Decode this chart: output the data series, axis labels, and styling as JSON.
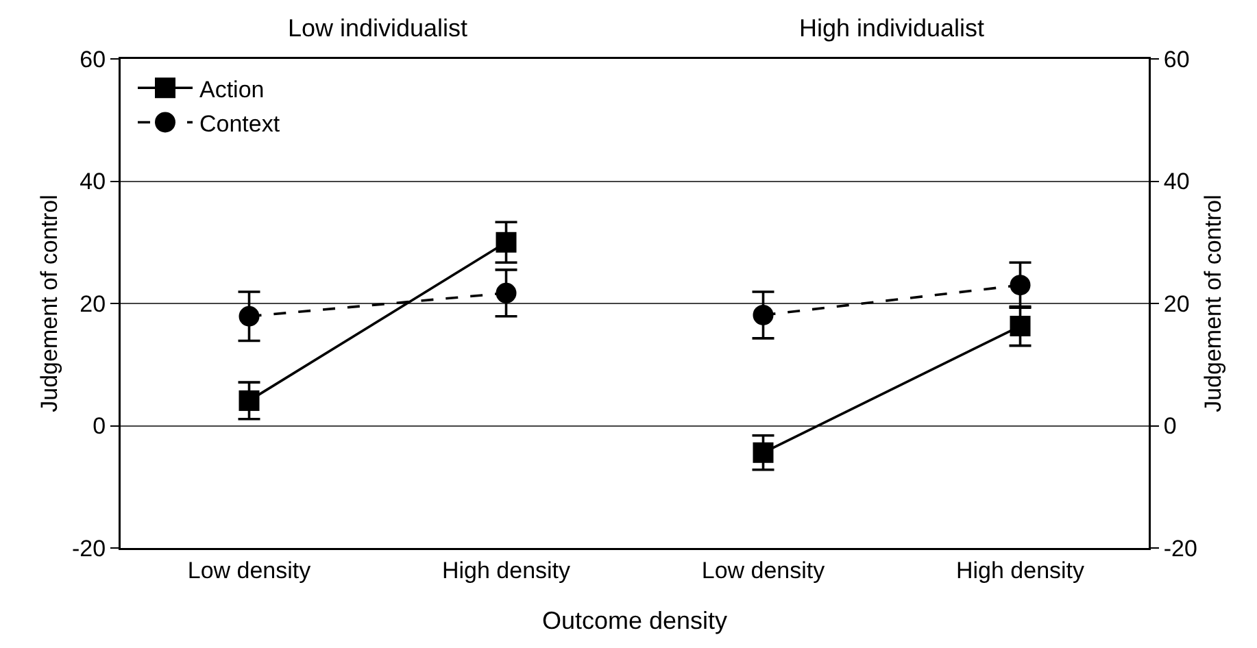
{
  "chart_data": [
    {
      "type": "line",
      "title": "Low individualist",
      "xlabel": "Outcome density",
      "ylabel": "Judgement of control",
      "categories": [
        "Low density",
        "High density"
      ],
      "series": [
        {
          "name": "Action",
          "color": "#000000",
          "marker": "square",
          "line_style": "solid",
          "values": [
            4.1,
            30.0
          ],
          "errors": [
            3.0,
            3.3
          ]
        },
        {
          "name": "Context",
          "color": "#000000",
          "marker": "circle",
          "line_style": "dashed",
          "values": [
            17.9,
            21.7
          ],
          "errors": [
            4.0,
            3.8
          ]
        }
      ],
      "ylim": [
        -20,
        60
      ],
      "yticks": [
        -20,
        0,
        20,
        40,
        60
      ],
      "grid": "y",
      "legend": "top left"
    },
    {
      "type": "line",
      "title": "High individualist",
      "ylabel": "Judgement of control",
      "categories": [
        "Low density",
        "High density"
      ],
      "series": [
        {
          "color": "#000000",
          "marker": "square",
          "line_style": "solid",
          "values": [
            -4.4,
            16.3
          ],
          "errors": [
            2.8,
            3.2
          ]
        },
        {
          "color": "#000000",
          "marker": "circle",
          "line_style": "dashed",
          "values": [
            18.1,
            23.0
          ],
          "errors": [
            3.8,
            3.7
          ]
        }
      ],
      "ylim": [
        -20,
        60
      ],
      "yticks": [
        -20,
        0,
        20,
        40,
        60
      ],
      "grid": "y"
    }
  ]
}
